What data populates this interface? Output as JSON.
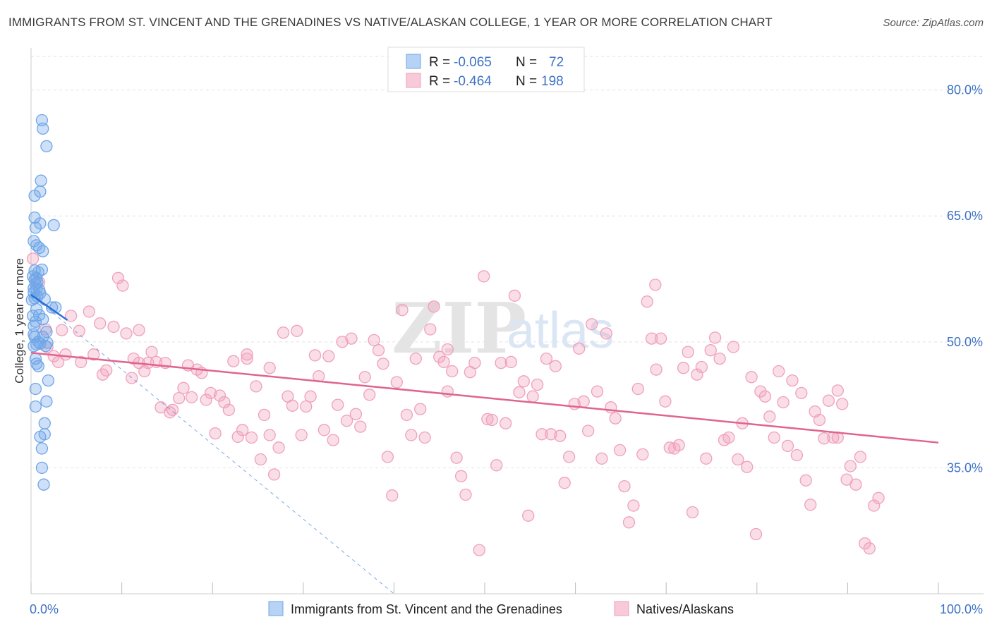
{
  "title": "IMMIGRANTS FROM ST. VINCENT AND THE GRENADINES VS NATIVE/ALASKAN COLLEGE, 1 YEAR OR MORE CORRELATION CHART",
  "source": "Source: ZipAtlas.com",
  "watermark": {
    "zip": "ZIP",
    "atlas": "atlas"
  },
  "colors": {
    "blue": "#6fa6e8",
    "pink": "#f0a0bb",
    "blue_line": "#2a6fd6",
    "pink_line": "#e0648f",
    "tick_text": "#3d72c4"
  },
  "legend": {
    "r_label": "R =",
    "n_label": "N =",
    "rows": [
      {
        "r": "-0.065",
        "n": "72"
      },
      {
        "r": "-0.464",
        "n": "198"
      }
    ]
  },
  "chart_data": {
    "type": "scatter",
    "xlabel": "",
    "ylabel": "College, 1 year or more",
    "xlim": [
      0,
      100
    ],
    "ylim": [
      20,
      84
    ],
    "x_tick_labels": [
      "0.0%",
      "100.0%"
    ],
    "y_ticks": [
      35,
      50,
      65,
      80
    ],
    "y_tick_labels": [
      "35.0%",
      "50.0%",
      "65.0%",
      "80.0%"
    ],
    "series": [
      {
        "name": "Immigrants from St. Vincent and the Grenadines",
        "points": [
          [
            1.2,
            76.4
          ],
          [
            1.3,
            75.4
          ],
          [
            1.7,
            73.3
          ],
          [
            1.1,
            69.2
          ],
          [
            1.0,
            67.9
          ],
          [
            0.4,
            67.4
          ],
          [
            0.4,
            64.8
          ],
          [
            1.0,
            64.1
          ],
          [
            2.5,
            63.9
          ],
          [
            0.5,
            63.6
          ],
          [
            0.3,
            62.0
          ],
          [
            0.6,
            61.5
          ],
          [
            0.9,
            61.2
          ],
          [
            1.3,
            60.8
          ],
          [
            0.4,
            58.5
          ],
          [
            1.2,
            58.6
          ],
          [
            0.8,
            58.3
          ],
          [
            0.6,
            57.6
          ],
          [
            0.2,
            57.8
          ],
          [
            0.4,
            57.4
          ],
          [
            0.7,
            57.1
          ],
          [
            0.3,
            56.4
          ],
          [
            0.9,
            56.2
          ],
          [
            0.6,
            56.3
          ],
          [
            0.3,
            55.9
          ],
          [
            1.0,
            55.8
          ],
          [
            0.4,
            55.2
          ],
          [
            0.7,
            55.4
          ],
          [
            0.1,
            55.0
          ],
          [
            1.5,
            55.1
          ],
          [
            2.3,
            54.1
          ],
          [
            2.7,
            54.1
          ],
          [
            0.6,
            53.9
          ],
          [
            0.9,
            53.2
          ],
          [
            0.2,
            53.1
          ],
          [
            0.5,
            52.4
          ],
          [
            1.3,
            52.7
          ],
          [
            0.3,
            51.9
          ],
          [
            1.7,
            51.2
          ],
          [
            0.4,
            50.6
          ],
          [
            1.3,
            50.6
          ],
          [
            0.8,
            50.0
          ],
          [
            0.6,
            49.7
          ],
          [
            1.0,
            49.8
          ],
          [
            1.8,
            49.9
          ],
          [
            1.6,
            49.5
          ],
          [
            0.3,
            49.5
          ],
          [
            0.5,
            48.0
          ],
          [
            0.6,
            47.4
          ],
          [
            0.8,
            47.1
          ],
          [
            1.9,
            45.4
          ],
          [
            0.5,
            44.4
          ],
          [
            1.7,
            42.9
          ],
          [
            0.5,
            42.3
          ],
          [
            1.5,
            40.3
          ],
          [
            1.5,
            39.0
          ],
          [
            1.0,
            38.7
          ],
          [
            1.2,
            37.3
          ],
          [
            1.2,
            35.0
          ],
          [
            1.4,
            33.0
          ],
          [
            0.5,
            56.9
          ],
          [
            0.3,
            50.9
          ]
        ]
      },
      {
        "name": "Natives/Alaskans",
        "points": [
          [
            0.2,
            59.9
          ],
          [
            0.9,
            57.1
          ],
          [
            1.6,
            51.5
          ],
          [
            1.8,
            49.4
          ],
          [
            2.5,
            48.3
          ],
          [
            3.0,
            47.6
          ],
          [
            3.4,
            51.4
          ],
          [
            3.8,
            48.5
          ],
          [
            4.4,
            53.1
          ],
          [
            5.3,
            51.3
          ],
          [
            5.5,
            47.6
          ],
          [
            6.4,
            53.6
          ],
          [
            6.9,
            48.5
          ],
          [
            7.6,
            52.2
          ],
          [
            7.9,
            46.1
          ],
          [
            8.3,
            46.6
          ],
          [
            9.1,
            51.8
          ],
          [
            9.6,
            57.6
          ],
          [
            10.1,
            56.7
          ],
          [
            10.5,
            51.0
          ],
          [
            11.1,
            45.7
          ],
          [
            11.3,
            48.0
          ],
          [
            11.9,
            51.4
          ],
          [
            12.5,
            46.5
          ],
          [
            12.9,
            47.5
          ],
          [
            13.3,
            48.8
          ],
          [
            13.8,
            47.6
          ],
          [
            14.3,
            42.2
          ],
          [
            14.8,
            47.5
          ],
          [
            15.3,
            41.6
          ],
          [
            15.6,
            41.9
          ],
          [
            16.3,
            43.3
          ],
          [
            16.8,
            44.5
          ],
          [
            17.3,
            47.2
          ],
          [
            17.7,
            43.4
          ],
          [
            18.3,
            46.7
          ],
          [
            18.8,
            46.3
          ],
          [
            19.3,
            43.1
          ],
          [
            19.8,
            43.9
          ],
          [
            20.3,
            39.1
          ],
          [
            20.8,
            43.6
          ],
          [
            21.3,
            42.8
          ],
          [
            21.8,
            41.9
          ],
          [
            22.3,
            47.7
          ],
          [
            22.8,
            38.7
          ],
          [
            23.3,
            39.5
          ],
          [
            23.8,
            48.0
          ],
          [
            24.3,
            38.6
          ],
          [
            24.8,
            44.7
          ],
          [
            25.3,
            36.0
          ],
          [
            25.7,
            41.3
          ],
          [
            26.3,
            38.9
          ],
          [
            26.8,
            34.2
          ],
          [
            27.3,
            37.4
          ],
          [
            27.8,
            51.1
          ],
          [
            28.3,
            43.5
          ],
          [
            28.8,
            42.4
          ],
          [
            29.3,
            51.3
          ],
          [
            29.8,
            38.9
          ],
          [
            30.3,
            42.3
          ],
          [
            30.8,
            43.5
          ],
          [
            31.3,
            48.4
          ],
          [
            31.7,
            45.9
          ],
          [
            32.3,
            39.5
          ],
          [
            32.8,
            48.3
          ],
          [
            33.3,
            38.3
          ],
          [
            33.8,
            42.5
          ],
          [
            34.3,
            50.0
          ],
          [
            34.8,
            40.6
          ],
          [
            35.3,
            50.4
          ],
          [
            35.8,
            41.4
          ],
          [
            36.3,
            39.9
          ],
          [
            36.8,
            45.8
          ],
          [
            37.3,
            43.7
          ],
          [
            37.8,
            50.2
          ],
          [
            38.3,
            49.0
          ],
          [
            38.8,
            47.4
          ],
          [
            39.3,
            36.3
          ],
          [
            39.8,
            31.7
          ],
          [
            40.3,
            45.2
          ],
          [
            40.9,
            53.8
          ],
          [
            41.4,
            41.3
          ],
          [
            41.9,
            38.9
          ],
          [
            42.4,
            48.0
          ],
          [
            42.9,
            42.0
          ],
          [
            43.4,
            38.6
          ],
          [
            44.0,
            51.5
          ],
          [
            44.4,
            54.2
          ],
          [
            45.0,
            48.2
          ],
          [
            45.5,
            47.6
          ],
          [
            45.9,
            49.1
          ],
          [
            46.4,
            46.5
          ],
          [
            46.9,
            36.2
          ],
          [
            47.4,
            34.0
          ],
          [
            47.9,
            31.8
          ],
          [
            48.4,
            46.4
          ],
          [
            48.9,
            47.5
          ],
          [
            49.4,
            25.2
          ],
          [
            49.9,
            57.8
          ],
          [
            50.3,
            40.8
          ],
          [
            50.8,
            40.7
          ],
          [
            51.3,
            35.3
          ],
          [
            51.8,
            47.5
          ],
          [
            52.3,
            40.3
          ],
          [
            52.9,
            47.6
          ],
          [
            53.3,
            55.5
          ],
          [
            53.8,
            44.0
          ],
          [
            54.3,
            45.3
          ],
          [
            54.8,
            29.3
          ],
          [
            55.3,
            43.5
          ],
          [
            55.8,
            44.9
          ],
          [
            56.3,
            39.0
          ],
          [
            56.8,
            48.0
          ],
          [
            57.3,
            39.0
          ],
          [
            57.8,
            47.1
          ],
          [
            58.3,
            38.8
          ],
          [
            58.8,
            33.2
          ],
          [
            59.3,
            36.3
          ],
          [
            59.9,
            42.6
          ],
          [
            60.4,
            49.2
          ],
          [
            60.9,
            42.9
          ],
          [
            61.4,
            39.4
          ],
          [
            61.8,
            52.1
          ],
          [
            62.4,
            44.1
          ],
          [
            62.9,
            36.1
          ],
          [
            63.4,
            51.0
          ],
          [
            63.9,
            42.2
          ],
          [
            64.4,
            40.9
          ],
          [
            64.9,
            37.1
          ],
          [
            65.4,
            32.8
          ],
          [
            65.9,
            28.5
          ],
          [
            66.4,
            30.5
          ],
          [
            66.9,
            44.4
          ],
          [
            67.4,
            36.6
          ],
          [
            67.9,
            54.8
          ],
          [
            68.4,
            50.4
          ],
          [
            68.9,
            46.7
          ],
          [
            69.4,
            50.4
          ],
          [
            69.9,
            42.9
          ],
          [
            70.4,
            37.4
          ],
          [
            70.9,
            37.3
          ],
          [
            71.4,
            37.7
          ],
          [
            71.9,
            46.9
          ],
          [
            72.4,
            48.8
          ],
          [
            72.9,
            29.7
          ],
          [
            73.4,
            46.1
          ],
          [
            73.9,
            47.0
          ],
          [
            74.4,
            36.1
          ],
          [
            74.9,
            49.0
          ],
          [
            75.4,
            50.5
          ],
          [
            75.9,
            48.0
          ],
          [
            76.4,
            38.3
          ],
          [
            76.9,
            38.6
          ],
          [
            77.4,
            49.4
          ],
          [
            77.9,
            36.0
          ],
          [
            78.4,
            40.3
          ],
          [
            78.9,
            35.1
          ],
          [
            79.4,
            45.8
          ],
          [
            79.9,
            27.1
          ],
          [
            80.4,
            44.1
          ],
          [
            80.9,
            43.5
          ],
          [
            81.4,
            41.1
          ],
          [
            81.9,
            38.6
          ],
          [
            82.4,
            46.5
          ],
          [
            82.9,
            42.8
          ],
          [
            83.4,
            37.6
          ],
          [
            83.9,
            45.4
          ],
          [
            84.4,
            36.5
          ],
          [
            84.9,
            43.9
          ],
          [
            85.4,
            33.5
          ],
          [
            85.9,
            30.6
          ],
          [
            86.4,
            41.7
          ],
          [
            86.9,
            40.7
          ],
          [
            87.4,
            38.5
          ],
          [
            87.9,
            43.0
          ],
          [
            88.4,
            38.6
          ],
          [
            88.9,
            44.2
          ],
          [
            89.4,
            42.6
          ],
          [
            89.9,
            33.6
          ],
          [
            90.3,
            35.2
          ],
          [
            90.9,
            33.0
          ],
          [
            91.4,
            36.3
          ],
          [
            91.9,
            26.0
          ],
          [
            92.4,
            25.4
          ],
          [
            92.9,
            30.5
          ],
          [
            93.4,
            31.4
          ],
          [
            88.9,
            38.6
          ],
          [
            68.8,
            56.8
          ],
          [
            45.9,
            44.1
          ],
          [
            23.8,
            48.5
          ],
          [
            11.9,
            47.5
          ],
          [
            26.3,
            46.9
          ]
        ]
      }
    ],
    "trend_lines": [
      {
        "series": "Immigrants from St. Vincent and the Grenadines",
        "x": [
          0,
          4
        ],
        "y": [
          55.6,
          52.6
        ],
        "style": "solid"
      },
      {
        "series": "Immigrants from St. Vincent and the Grenadines",
        "x": [
          0,
          40
        ],
        "y": [
          55.6,
          20.0
        ],
        "style": "dashed"
      },
      {
        "series": "Natives/Alaskans",
        "x": [
          0,
          100
        ],
        "y": [
          48.7,
          38.0
        ],
        "style": "solid"
      }
    ]
  }
}
